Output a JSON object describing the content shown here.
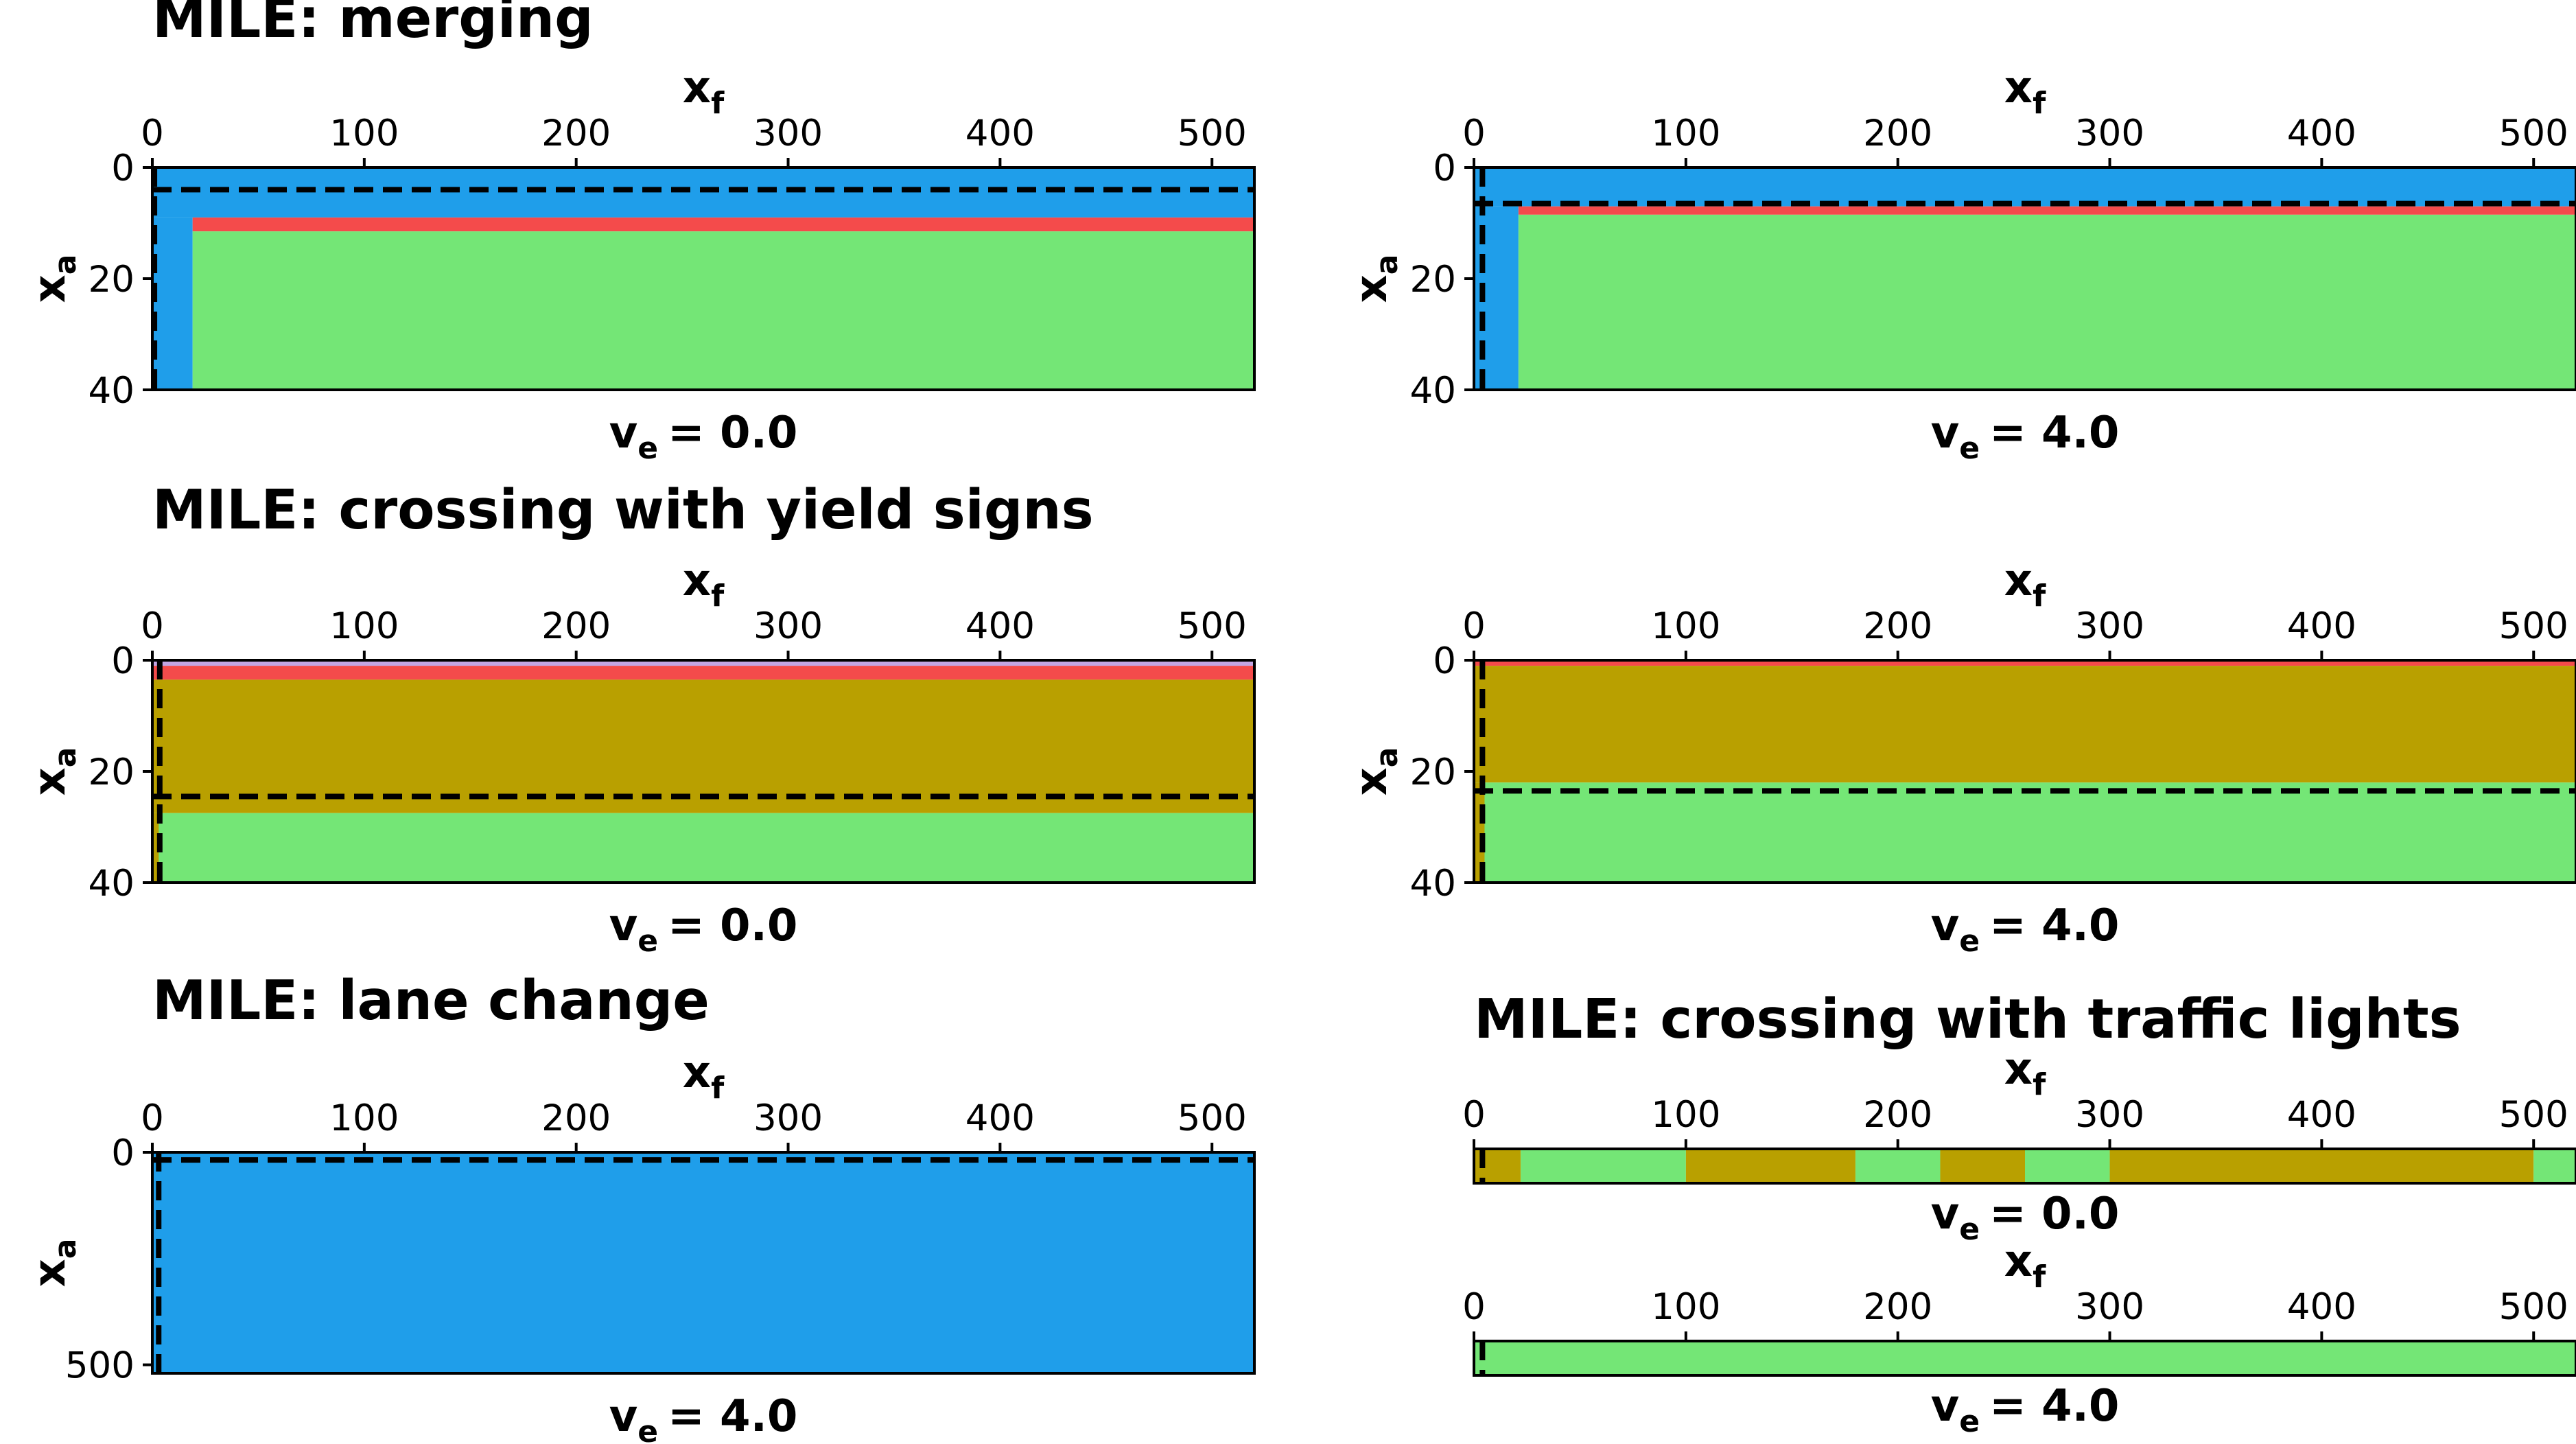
{
  "colors": {
    "blue": "#1f9eea",
    "green": "#74e676",
    "red": "#f44b4b",
    "olive": "#b9a000",
    "lavender": "#c4a6e4",
    "dash": "#000000"
  },
  "chart_data": [
    {
      "id": "merge-v0",
      "type": "heatmap",
      "title": "MILE: merging",
      "xlabel": "x",
      "xlabel_sub": "f",
      "ylabel": "x",
      "ylabel_sub": "a",
      "caption": "v",
      "caption_sub": "e",
      "caption_value": "= 0.0",
      "xlim": [
        0,
        520
      ],
      "ylim": [
        40,
        0
      ],
      "xticks": [
        "0",
        "100",
        "200",
        "300",
        "400",
        "500"
      ],
      "yticks": [
        "0",
        "20",
        "40"
      ],
      "regions": [
        {
          "color": "blue",
          "x0": 0,
          "x1": 520,
          "y0": 0,
          "y1": 9
        },
        {
          "color": "blue",
          "x0": 0,
          "x1": 19,
          "y0": 9,
          "y1": 40
        },
        {
          "color": "red",
          "x0": 19,
          "x1": 520,
          "y0": 9,
          "y1": 11.5
        },
        {
          "color": "green",
          "x0": 19,
          "x1": 520,
          "y0": 11.5,
          "y1": 40
        }
      ],
      "hline": 4,
      "vline": 1
    },
    {
      "id": "merge-v4",
      "type": "heatmap",
      "title": "",
      "xlabel": "x",
      "xlabel_sub": "f",
      "ylabel": "x",
      "ylabel_sub": "a",
      "caption": "v",
      "caption_sub": "e",
      "caption_value": "= 4.0",
      "xlim": [
        0,
        520
      ],
      "ylim": [
        40,
        0
      ],
      "xticks": [
        "0",
        "100",
        "200",
        "300",
        "400",
        "500"
      ],
      "yticks": [
        "0",
        "20",
        "40"
      ],
      "regions": [
        {
          "color": "blue",
          "x0": 0,
          "x1": 520,
          "y0": 0,
          "y1": 7
        },
        {
          "color": "blue",
          "x0": 0,
          "x1": 21,
          "y0": 7,
          "y1": 40
        },
        {
          "color": "red",
          "x0": 21,
          "x1": 520,
          "y0": 7,
          "y1": 8.5
        },
        {
          "color": "green",
          "x0": 21,
          "x1": 520,
          "y0": 8.5,
          "y1": 40
        }
      ],
      "hline": 6.5,
      "vline": 4
    },
    {
      "id": "yield-v0",
      "type": "heatmap",
      "title": "MILE: crossing with yield signs",
      "xlabel": "x",
      "xlabel_sub": "f",
      "ylabel": "x",
      "ylabel_sub": "a",
      "caption": "v",
      "caption_sub": "e",
      "caption_value": "= 0.0",
      "xlim": [
        0,
        520
      ],
      "ylim": [
        40,
        0
      ],
      "xticks": [
        "0",
        "100",
        "200",
        "300",
        "400",
        "500"
      ],
      "yticks": [
        "0",
        "20",
        "40"
      ],
      "regions": [
        {
          "color": "lavender",
          "x0": 0,
          "x1": 520,
          "y0": 0,
          "y1": 1
        },
        {
          "color": "red",
          "x0": 0,
          "x1": 520,
          "y0": 1,
          "y1": 3.5
        },
        {
          "color": "olive",
          "x0": 0,
          "x1": 520,
          "y0": 3.5,
          "y1": 27.5
        },
        {
          "color": "green",
          "x0": 0,
          "x1": 520,
          "y0": 27.5,
          "y1": 40
        },
        {
          "color": "olive",
          "x0": 0,
          "x1": 3,
          "y0": 27.5,
          "y1": 40
        }
      ],
      "hline": 24.5,
      "vline": 3.5
    },
    {
      "id": "yield-v4",
      "type": "heatmap",
      "title": "",
      "xlabel": "x",
      "xlabel_sub": "f",
      "ylabel": "x",
      "ylabel_sub": "a",
      "caption": "v",
      "caption_sub": "e",
      "caption_value": "= 4.0",
      "xlim": [
        0,
        520
      ],
      "ylim": [
        40,
        0
      ],
      "xticks": [
        "0",
        "100",
        "200",
        "300",
        "400",
        "500"
      ],
      "yticks": [
        "0",
        "20",
        "40"
      ],
      "regions": [
        {
          "color": "red",
          "x0": 0,
          "x1": 520,
          "y0": 0,
          "y1": 1
        },
        {
          "color": "olive",
          "x0": 0,
          "x1": 520,
          "y0": 1,
          "y1": 22
        },
        {
          "color": "green",
          "x0": 0,
          "x1": 520,
          "y0": 22,
          "y1": 40
        },
        {
          "color": "olive",
          "x0": 0,
          "x1": 5,
          "y0": 22,
          "y1": 40
        }
      ],
      "hline": 23.5,
      "vline": 4
    },
    {
      "id": "lane-v4",
      "type": "heatmap",
      "title": "MILE: lane change",
      "xlabel": "x",
      "xlabel_sub": "f",
      "ylabel": "x",
      "ylabel_sub": "a",
      "caption": "v",
      "caption_sub": "e",
      "caption_value": "= 4.0",
      "xlim": [
        0,
        520
      ],
      "ylim": [
        520,
        0
      ],
      "xticks": [
        "0",
        "100",
        "200",
        "300",
        "400",
        "500"
      ],
      "yticks": [
        "0",
        "500"
      ],
      "yticks_values": [
        0,
        500
      ],
      "regions": [
        {
          "color": "blue",
          "x0": 0,
          "x1": 520,
          "y0": 0,
          "y1": 520
        }
      ],
      "hline": 18,
      "vline": 3
    },
    {
      "id": "lights-v0",
      "type": "heatmap",
      "title": "MILE: crossing with traffic lights",
      "xlabel": "x",
      "xlabel_sub": "f",
      "caption": "v",
      "caption_sub": "e",
      "caption_value": "= 0.0",
      "xlim": [
        0,
        520
      ],
      "xticks": [
        "0",
        "100",
        "200",
        "300",
        "400",
        "500"
      ],
      "regions": [
        {
          "color": "olive",
          "x0": 0,
          "x1": 22
        },
        {
          "color": "green",
          "x0": 22,
          "x1": 100
        },
        {
          "color": "olive",
          "x0": 100,
          "x1": 180
        },
        {
          "color": "green",
          "x0": 180,
          "x1": 220
        },
        {
          "color": "olive",
          "x0": 220,
          "x1": 260
        },
        {
          "color": "green",
          "x0": 260,
          "x1": 300
        },
        {
          "color": "olive",
          "x0": 300,
          "x1": 500
        },
        {
          "color": "green",
          "x0": 500,
          "x1": 520
        }
      ],
      "vline": 4
    },
    {
      "id": "lights-v4",
      "type": "heatmap",
      "title": "",
      "xlabel": "x",
      "xlabel_sub": "f",
      "caption": "v",
      "caption_sub": "e",
      "caption_value": "= 4.0",
      "xlim": [
        0,
        520
      ],
      "xticks": [
        "0",
        "100",
        "200",
        "300",
        "400",
        "500"
      ],
      "regions": [
        {
          "color": "green",
          "x0": 0,
          "x1": 520
        }
      ],
      "vline": 4
    }
  ]
}
